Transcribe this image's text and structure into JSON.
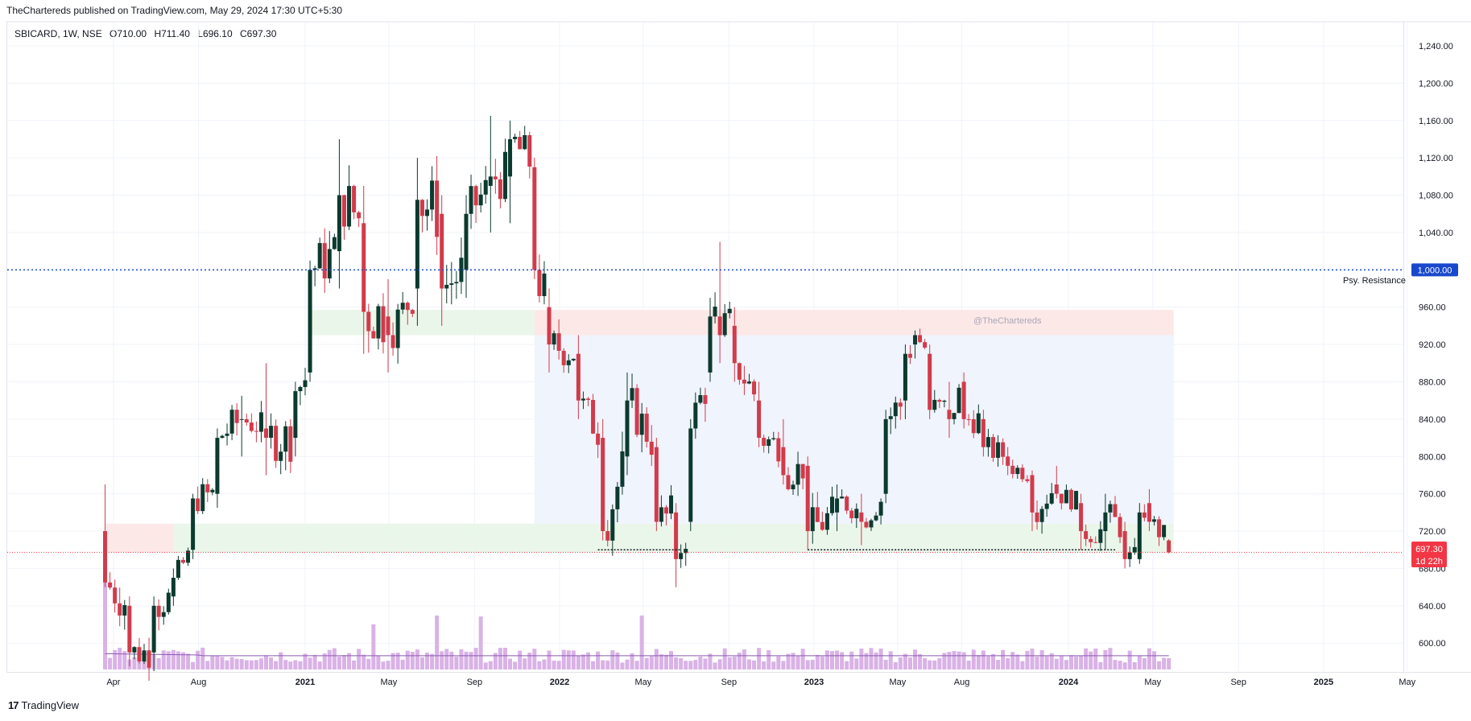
{
  "header": {
    "publish_line": "TheChartereds published on TradingView.com, May 29, 2024 17:30 UTC+5:30",
    "symbol": "SBICARD, 1W, NSE",
    "open": "O710.00",
    "high": "H711.40",
    "low": "L696.10",
    "close": "C697.30"
  },
  "footer": {
    "brand": "TradingView",
    "logo": "17"
  },
  "watermark": "@TheChartereds",
  "annotations": {
    "resistance_label": "Psy. Resistance",
    "resistance_price_tag": "1,000.00",
    "last_price_tag": "697.30",
    "countdown_tag": "1d 22h"
  },
  "colors": {
    "up": "#089981",
    "down": "#f23645",
    "upBody": "#0b3a2e",
    "downBody": "#d13b4b",
    "volume": "#d9b2e6",
    "volumeMA": "#8c5ab4",
    "resistance": "#1848cc",
    "lastPrice": "#f23645",
    "zoneGreen": "#e6f4e6",
    "zoneRed": "#fde4e4",
    "zoneBlue": "#eef3fc"
  },
  "chart_data": {
    "type": "candlestick",
    "title": "SBICARD, 1W, NSE",
    "ylim": [
      570,
      1265
    ],
    "y_ticks": [
      "600.00",
      "640.00",
      "680.00",
      "720.00",
      "760.00",
      "800.00",
      "840.00",
      "880.00",
      "920.00",
      "960.00",
      "1,040.00",
      "1,080.00",
      "1,120.00",
      "1,160.00",
      "1,200.00",
      "1,240.00"
    ],
    "x_ticks": [
      {
        "label": "Apr",
        "date": "2020-04-01",
        "bold": false
      },
      {
        "label": "Aug",
        "date": "2020-08-01",
        "bold": false
      },
      {
        "label": "2021",
        "date": "2021-01-01",
        "bold": true
      },
      {
        "label": "May",
        "date": "2021-05-01",
        "bold": false
      },
      {
        "label": "Sep",
        "date": "2021-09-01",
        "bold": false
      },
      {
        "label": "2022",
        "date": "2022-01-01",
        "bold": true
      },
      {
        "label": "May",
        "date": "2022-05-01",
        "bold": false
      },
      {
        "label": "Sep",
        "date": "2022-09-01",
        "bold": false
      },
      {
        "label": "2023",
        "date": "2023-01-01",
        "bold": true
      },
      {
        "label": "May",
        "date": "2023-05-01",
        "bold": false
      },
      {
        "label": "Aug",
        "date": "2023-08-01",
        "bold": false
      },
      {
        "label": "2024",
        "date": "2024-01-01",
        "bold": true
      },
      {
        "label": "May",
        "date": "2024-05-01",
        "bold": false
      },
      {
        "label": "Sep",
        "date": "2024-09-01",
        "bold": false
      },
      {
        "label": "2025",
        "date": "2025-01-01",
        "bold": true
      },
      {
        "label": "May",
        "date": "2025-05-01",
        "bold": false
      }
    ],
    "horizontal_lines": [
      {
        "price": 1000,
        "label": "Psy. Resistance",
        "style": "dotted"
      },
      {
        "price": 697.3,
        "label": "697.30",
        "style": "dotted"
      }
    ],
    "zones": [
      {
        "type": "support",
        "from": "2020-03-20",
        "to": "2024-05-31",
        "low": 697,
        "high": 728
      },
      {
        "type": "supply",
        "from": "2020-03-20",
        "to": "2020-06-26",
        "low": 697,
        "high": 728
      },
      {
        "type": "demand",
        "from": "2021-01-08",
        "to": "2021-11-26",
        "low": 930,
        "high": 957
      },
      {
        "type": "supply",
        "from": "2021-11-26",
        "to": "2024-05-31",
        "low": 930,
        "high": 957
      },
      {
        "type": "range",
        "from": "2021-11-26",
        "to": "2024-05-31",
        "low": 728,
        "high": 930
      }
    ],
    "support_lines": [
      {
        "from": "2022-02-25",
        "to": "2022-06-24",
        "price": 700
      },
      {
        "from": "2022-12-23",
        "to": "2024-03-08",
        "price": 700
      }
    ],
    "ohlc_anchors": [
      {
        "date": "2020-03-20",
        "open": 720,
        "high": 770,
        "low": 660,
        "close": 665
      },
      {
        "date": "2020-04-24",
        "open": 640,
        "high": 650,
        "low": 575,
        "close": 590
      },
      {
        "date": "2020-05-29",
        "open": 590,
        "high": 650,
        "low": 570,
        "close": 640
      },
      {
        "date": "2020-06-26",
        "open": 650,
        "high": 680,
        "low": 640,
        "close": 670
      },
      {
        "date": "2020-07-24",
        "open": 700,
        "high": 760,
        "low": 690,
        "close": 755
      },
      {
        "date": "2020-08-28",
        "open": 760,
        "high": 830,
        "low": 745,
        "close": 820
      },
      {
        "date": "2020-10-02",
        "open": 840,
        "high": 865,
        "low": 800,
        "close": 840
      },
      {
        "date": "2020-11-06",
        "open": 830,
        "high": 900,
        "low": 780,
        "close": 820
      },
      {
        "date": "2020-12-18",
        "open": 820,
        "high": 880,
        "low": 800,
        "close": 870
      },
      {
        "date": "2021-01-08",
        "open": 890,
        "high": 1010,
        "low": 880,
        "close": 1000
      },
      {
        "date": "2021-02-19",
        "open": 1020,
        "high": 1140,
        "low": 980,
        "close": 1080
      },
      {
        "date": "2021-03-26",
        "open": 1050,
        "high": 1090,
        "low": 910,
        "close": 955
      },
      {
        "date": "2021-04-30",
        "open": 950,
        "high": 990,
        "low": 890,
        "close": 930
      },
      {
        "date": "2021-06-11",
        "open": 980,
        "high": 1120,
        "low": 940,
        "close": 1075
      },
      {
        "date": "2021-07-16",
        "open": 1060,
        "high": 1080,
        "low": 940,
        "close": 980
      },
      {
        "date": "2021-08-20",
        "open": 1000,
        "high": 1080,
        "low": 970,
        "close": 1060
      },
      {
        "date": "2021-09-24",
        "open": 1090,
        "high": 1165,
        "low": 1040,
        "close": 1100
      },
      {
        "date": "2021-10-22",
        "open": 1100,
        "high": 1160,
        "low": 1050,
        "close": 1140
      },
      {
        "date": "2021-11-26",
        "open": 1110,
        "high": 1120,
        "low": 990,
        "close": 1000
      },
      {
        "date": "2021-12-17",
        "open": 960,
        "high": 980,
        "low": 890,
        "close": 920
      },
      {
        "date": "2022-01-28",
        "open": 910,
        "high": 930,
        "low": 840,
        "close": 860
      },
      {
        "date": "2022-03-04",
        "open": 820,
        "high": 840,
        "low": 710,
        "close": 720
      },
      {
        "date": "2022-04-08",
        "open": 800,
        "high": 890,
        "low": 780,
        "close": 860
      },
      {
        "date": "2022-05-20",
        "open": 810,
        "high": 820,
        "low": 720,
        "close": 730
      },
      {
        "date": "2022-06-17",
        "open": 740,
        "high": 750,
        "low": 660,
        "close": 690
      },
      {
        "date": "2022-07-08",
        "open": 730,
        "high": 840,
        "low": 720,
        "close": 830
      },
      {
        "date": "2022-08-05",
        "open": 890,
        "high": 970,
        "low": 880,
        "close": 950
      },
      {
        "date": "2022-08-19",
        "open": 950,
        "high": 1030,
        "low": 900,
        "close": 930
      },
      {
        "date": "2022-09-09",
        "open": 940,
        "high": 960,
        "low": 880,
        "close": 900
      },
      {
        "date": "2022-10-14",
        "open": 860,
        "high": 880,
        "low": 810,
        "close": 820
      },
      {
        "date": "2022-11-18",
        "open": 810,
        "high": 840,
        "low": 770,
        "close": 780
      },
      {
        "date": "2022-12-23",
        "open": 790,
        "high": 800,
        "low": 700,
        "close": 720
      },
      {
        "date": "2023-02-03",
        "open": 740,
        "high": 770,
        "low": 720,
        "close": 755
      },
      {
        "date": "2023-03-10",
        "open": 740,
        "high": 760,
        "low": 705,
        "close": 730
      },
      {
        "date": "2023-04-14",
        "open": 760,
        "high": 850,
        "low": 750,
        "close": 840
      },
      {
        "date": "2023-05-12",
        "open": 860,
        "high": 920,
        "low": 840,
        "close": 910
      },
      {
        "date": "2023-05-26",
        "open": 920,
        "high": 935,
        "low": 905,
        "close": 930
      },
      {
        "date": "2023-06-16",
        "open": 910,
        "high": 920,
        "low": 840,
        "close": 850
      },
      {
        "date": "2023-07-14",
        "open": 850,
        "high": 880,
        "low": 820,
        "close": 840
      },
      {
        "date": "2023-08-04",
        "open": 880,
        "high": 890,
        "low": 830,
        "close": 840
      },
      {
        "date": "2023-09-01",
        "open": 840,
        "high": 850,
        "low": 800,
        "close": 810
      },
      {
        "date": "2023-10-06",
        "open": 800,
        "high": 810,
        "low": 780,
        "close": 790
      },
      {
        "date": "2023-11-10",
        "open": 780,
        "high": 785,
        "low": 720,
        "close": 740
      },
      {
        "date": "2023-12-15",
        "open": 770,
        "high": 790,
        "low": 755,
        "close": 760
      },
      {
        "date": "2024-01-19",
        "open": 750,
        "high": 760,
        "low": 700,
        "close": 720
      },
      {
        "date": "2024-02-23",
        "open": 720,
        "high": 760,
        "low": 700,
        "close": 740
      },
      {
        "date": "2024-03-22",
        "open": 720,
        "high": 730,
        "low": 680,
        "close": 690
      },
      {
        "date": "2024-04-12",
        "open": 690,
        "high": 750,
        "low": 685,
        "close": 740
      },
      {
        "date": "2024-04-26",
        "open": 750,
        "high": 765,
        "low": 720,
        "close": 730
      },
      {
        "date": "2024-05-24",
        "open": 710,
        "high": 711.4,
        "low": 696.1,
        "close": 697.3
      }
    ],
    "volume": {
      "series_name": "Volume",
      "spikes": [
        {
          "date": "2020-03-20",
          "value": 1.0
        },
        {
          "date": "2021-04-09",
          "value": 0.46
        },
        {
          "date": "2021-07-09",
          "value": 0.55
        },
        {
          "date": "2021-09-10",
          "value": 0.54
        },
        {
          "date": "2022-04-29",
          "value": 0.55
        }
      ],
      "typical": 0.14,
      "ma_typical": 0.14
    }
  }
}
